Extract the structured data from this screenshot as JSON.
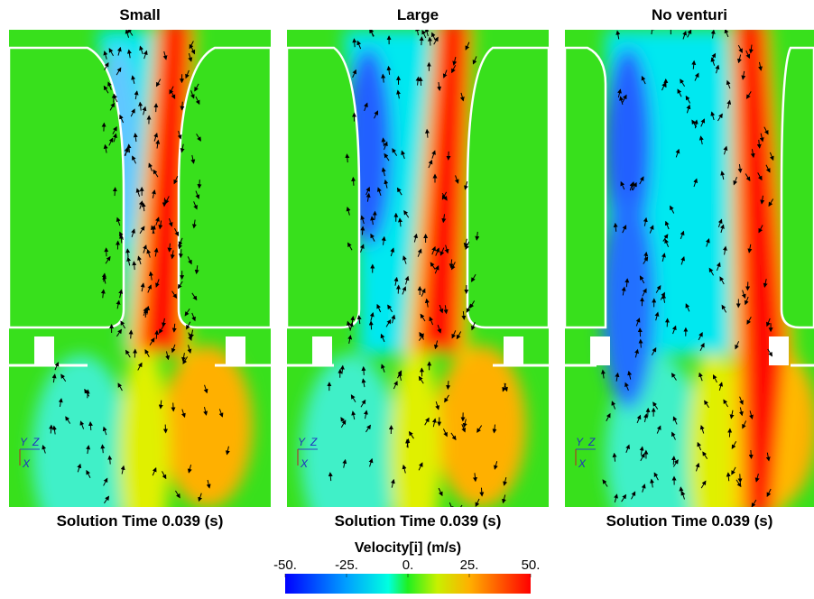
{
  "panels": [
    {
      "title": "Small",
      "caption": "Solution Time 0.039 (s)"
    },
    {
      "title": "Large",
      "caption": "Solution Time 0.039 (s)"
    },
    {
      "title": "No venturi",
      "caption": "Solution Time 0.039 (s)"
    }
  ],
  "colorbar": {
    "title": "Velocity[i] (m/s)",
    "range": [
      -50,
      50
    ],
    "ticks": [
      {
        "value": -50,
        "label": "-50."
      },
      {
        "value": -25,
        "label": "-25."
      },
      {
        "value": 0,
        "label": "0."
      },
      {
        "value": 25,
        "label": "25."
      },
      {
        "value": 50,
        "label": "50."
      }
    ]
  },
  "axes_triad": {
    "y": "Y",
    "z": "Z",
    "x": "X"
  }
}
